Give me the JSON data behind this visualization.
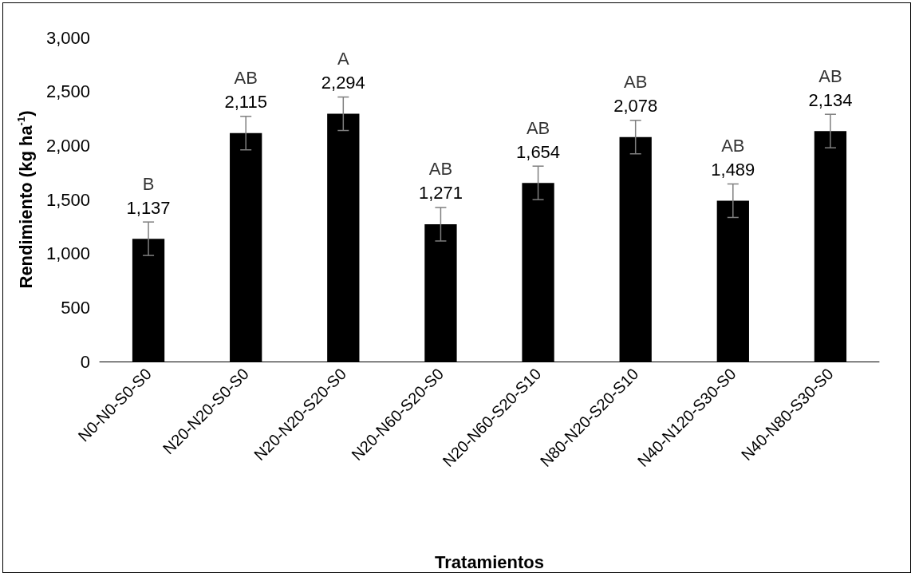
{
  "chart_data": {
    "type": "bar",
    "xlabel": "Tratamientos",
    "ylabel": "Rendimiento (kg ha$^{-1}$)",
    "categories": [
      "N0-N0-S0-S0",
      "N20-N20-S0-S0",
      "N20-N20-S20-S0",
      "N20-N60-S20-S0",
      "N20-N60-S20-S10",
      "N80-N20-S20-S10",
      "N40-N120-S30-S0",
      "N40-N80-S30-S0"
    ],
    "values": [
      1137,
      2115,
      2294,
      1271,
      1654,
      2078,
      1489,
      2134
    ],
    "value_labels": [
      "1,137",
      "2,115",
      "2,294",
      "1,271",
      "1,654",
      "2,078",
      "1,489",
      "2,134"
    ],
    "errors": [
      155,
      155,
      155,
      155,
      155,
      155,
      155,
      155
    ],
    "color": "#000000",
    "ylim": [
      0,
      3000
    ],
    "yticks": [
      0,
      500,
      {
        "value": 1000,
        "label": "1,000"
      },
      {
        "value": 1500,
        "label": "1,500"
      },
      {
        "value": 2000,
        "label": "2,000"
      },
      {
        "value": 2500,
        "label": "2,500"
      },
      {
        "value": 3000,
        "label": "3,000"
      }
    ],
    "grid": false,
    "annotations": [
      {
        "text": "B",
        "x": "N0-N0-S0-S0",
        "y": 1137
      },
      {
        "text": "AB",
        "x": "N20-N20-S0-S0",
        "y": 2115
      },
      {
        "text": "A",
        "x": "N20-N20-S20-S0",
        "y": 2294
      },
      {
        "text": "AB",
        "x": "N20-N60-S20-S0",
        "y": 1271
      },
      {
        "text": "AB",
        "x": "N20-N60-S20-S10",
        "y": 1654
      },
      {
        "text": "AB",
        "x": "N80-N20-S20-S10",
        "y": 2078
      },
      {
        "text": "AB",
        "x": "N40-N120-S30-S0",
        "y": 1489
      },
      {
        "text": "AB",
        "x": "N40-N80-S30-S0",
        "y": 2134
      }
    ]
  }
}
